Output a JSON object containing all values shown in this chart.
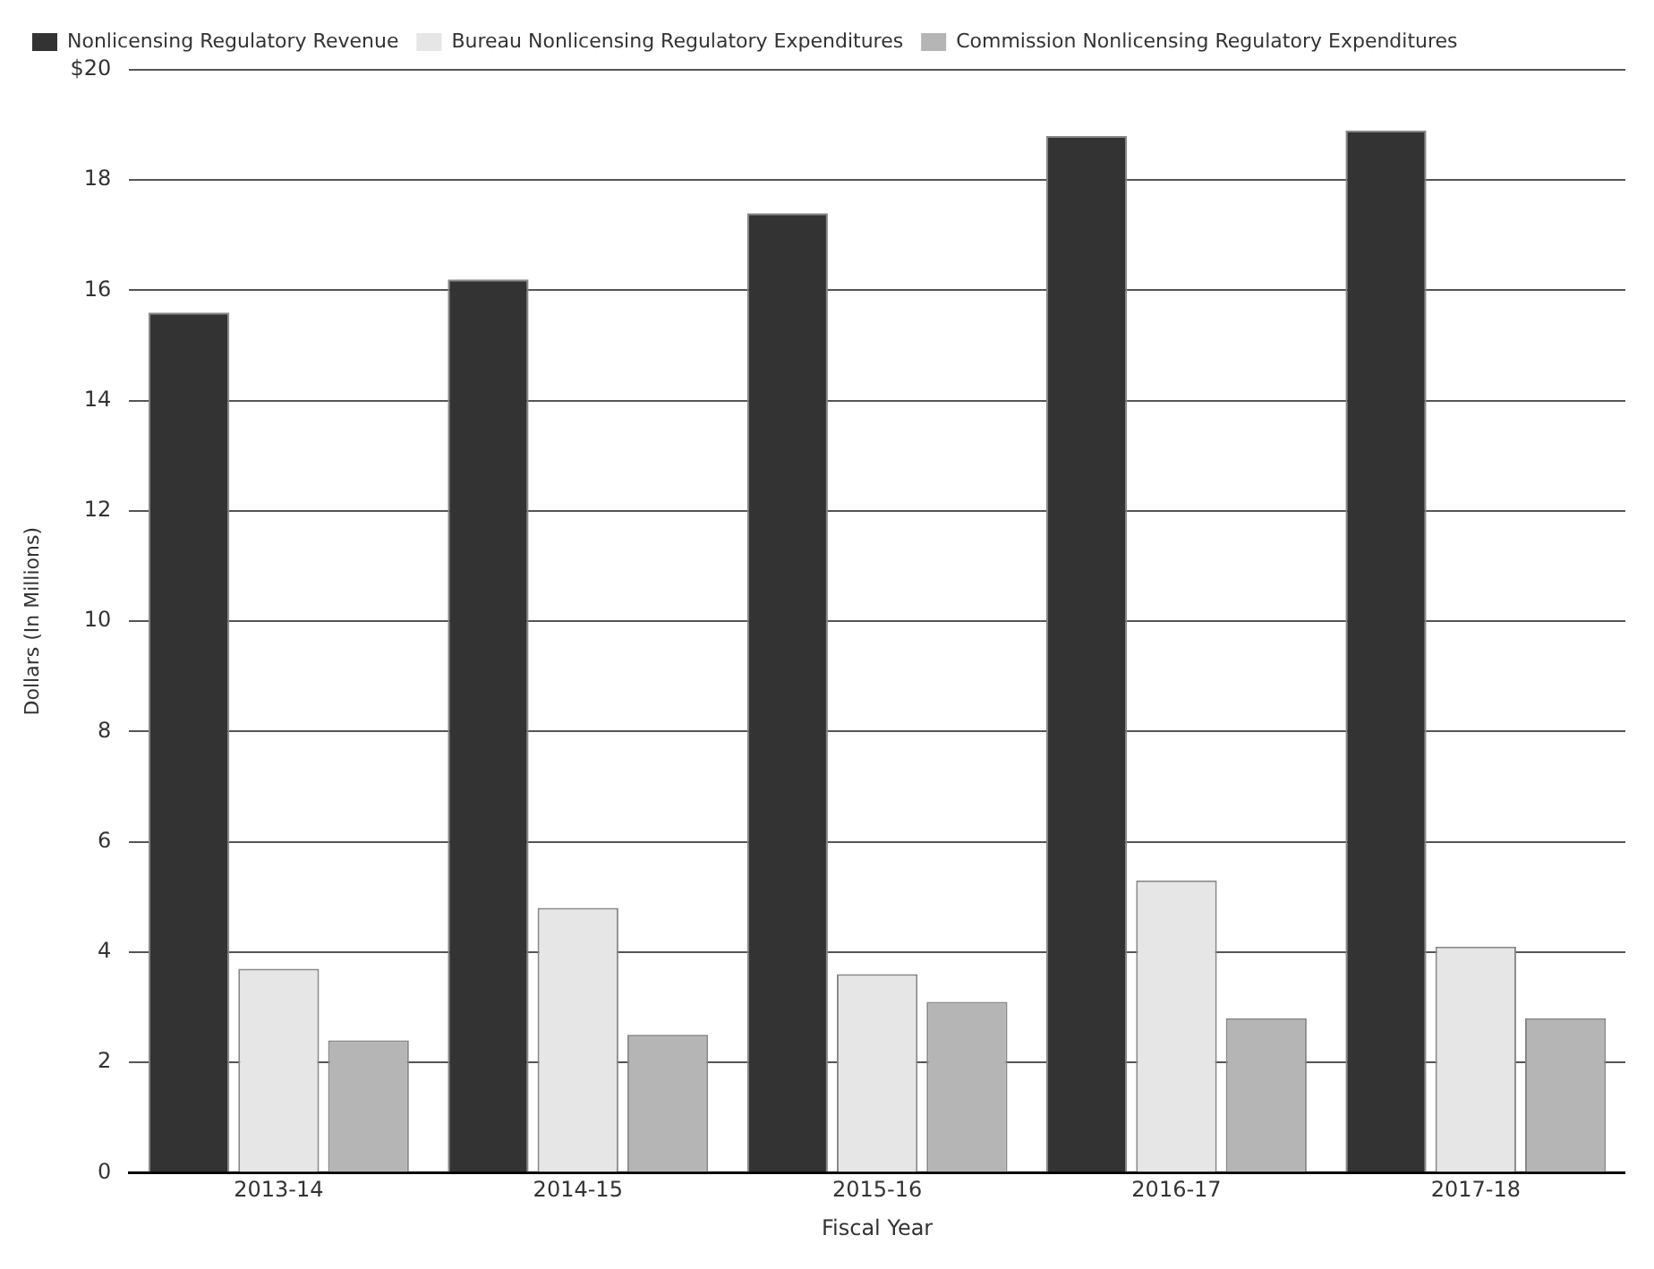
{
  "chart_data": {
    "type": "bar",
    "xlabel": "Fiscal Year",
    "ylabel": "Dollars (In Millions)",
    "categories": [
      "2013-14",
      "2014-15",
      "2015-16",
      "2016-17",
      "2017-18"
    ],
    "series": [
      {
        "name": "Nonlicensing Regulatory Revenue",
        "color": "#333333",
        "values": [
          15.6,
          16.2,
          17.4,
          18.8,
          18.9
        ]
      },
      {
        "name": "Bureau Nonlicensing Regulatory Expenditures",
        "color": "#e6e6e6",
        "values": [
          3.7,
          4.8,
          3.6,
          5.3,
          4.1
        ]
      },
      {
        "name": "Commission Nonlicensing Regulatory Expenditures",
        "color": "#b5b5b5",
        "values": [
          2.4,
          2.5,
          3.1,
          2.8,
          2.8
        ]
      }
    ],
    "ylim": [
      0,
      20
    ],
    "yticks": [
      0,
      2,
      4,
      6,
      8,
      10,
      12,
      14,
      16,
      18,
      {
        "value": 20,
        "label": "$20"
      }
    ],
    "grid": "y",
    "legend": "top left"
  }
}
